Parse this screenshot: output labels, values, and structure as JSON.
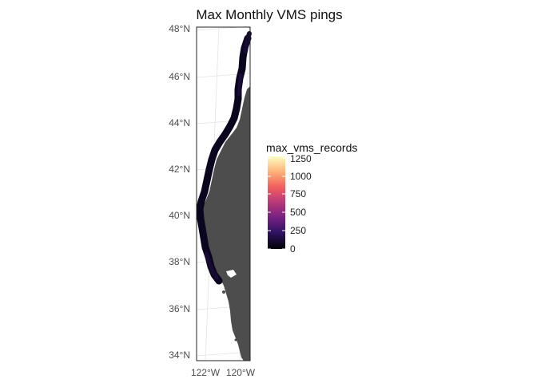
{
  "chart_data": {
    "type": "map",
    "title": "Max Monthly VMS pings",
    "lat_ticks": [
      "48°N",
      "46°N",
      "44°N",
      "42°N",
      "40°N",
      "38°N",
      "36°N",
      "34°N"
    ],
    "lon_ticks": [
      "122°W",
      "120°W"
    ],
    "legend": {
      "title": "max_vms_records",
      "breaks": [
        "0",
        "250",
        "500",
        "750",
        "1000",
        "1250"
      ],
      "gradient_colors": [
        "#000004",
        "#2c115f",
        "#721f81",
        "#b73779",
        "#f1605d",
        "#feb078",
        "#fcfdbf"
      ]
    },
    "colors": {
      "land": "#4d4d4d",
      "fishing_effort": "#0b0520",
      "panel_border": "#222222",
      "grid": "#e3e3e3"
    }
  }
}
